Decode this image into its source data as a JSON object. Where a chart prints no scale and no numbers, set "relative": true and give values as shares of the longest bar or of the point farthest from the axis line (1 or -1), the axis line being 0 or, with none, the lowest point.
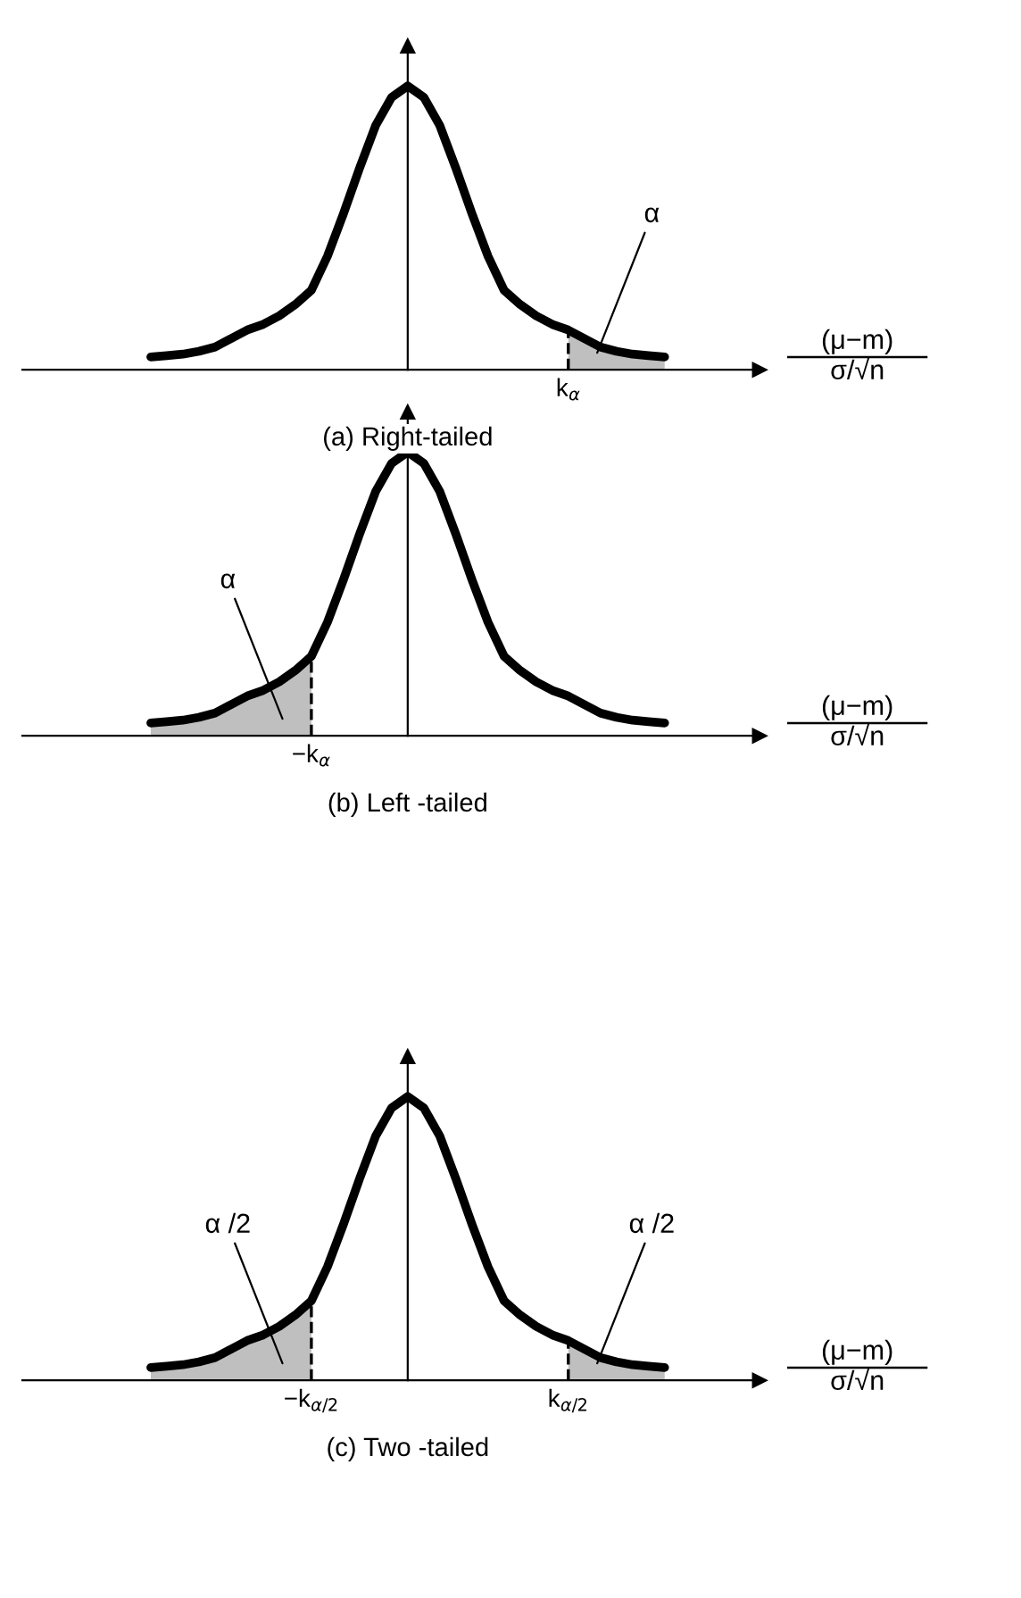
{
  "chart_data": [
    {
      "type": "line",
      "relative": true,
      "title": "(a) Right-tailed",
      "xlabel": "(μ−m)\nσ/√n",
      "categories": [
        null,
        null,
        null,
        null,
        null,
        null,
        null,
        null,
        null,
        null,
        null,
        null,
        null,
        null,
        null,
        null,
        null,
        null,
        null,
        null,
        null,
        null,
        null,
        null,
        null,
        null,
        null,
        null,
        null,
        null,
        null,
        null,
        null
      ],
      "series": [
        {
          "type": "line",
          "color": "#000000",
          "values": [
            0.045,
            0.05,
            0.055,
            0.065,
            0.08,
            0.11,
            0.14,
            0.16,
            0.19,
            0.23,
            0.28,
            0.4,
            0.55,
            0.71,
            0.86,
            0.96,
            1,
            0.96,
            0.86,
            0.71,
            0.55,
            0.4,
            0.28,
            0.23,
            0.19,
            0.16,
            0.14,
            0.11,
            0.08,
            0.065,
            0.055,
            0.05,
            0.045
          ]
        },
        {
          "type": "area",
          "color": "#bfbfbf",
          "line_style": "dashed",
          "values": [
            null,
            null,
            null,
            null,
            null,
            null,
            null,
            null,
            null,
            null,
            null,
            null,
            null,
            null,
            null,
            null,
            null,
            null,
            null,
            null,
            null,
            null,
            null,
            null,
            null,
            null,
            0.14,
            0.11,
            0.08,
            0.065,
            0.055,
            0.05,
            0.045
          ]
        }
      ],
      "annotations": [
        "k$_{α}$",
        "α"
      ]
    },
    {
      "type": "line",
      "relative": true,
      "title": "(b) Left -tailed",
      "xlabel": "(μ−m)\nσ/√n",
      "categories": [
        null,
        null,
        null,
        null,
        null,
        null,
        null,
        null,
        null,
        null,
        null,
        null,
        null,
        null,
        null,
        null,
        null,
        null,
        null,
        null,
        null,
        null,
        null,
        null,
        null,
        null,
        null,
        null,
        null,
        null,
        null,
        null,
        null
      ],
      "series": [
        {
          "type": "line",
          "color": "#000000",
          "values": [
            0.045,
            0.05,
            0.055,
            0.065,
            0.08,
            0.11,
            0.14,
            0.16,
            0.19,
            0.23,
            0.28,
            0.4,
            0.55,
            0.71,
            0.86,
            0.96,
            1,
            0.96,
            0.86,
            0.71,
            0.55,
            0.4,
            0.28,
            0.23,
            0.19,
            0.16,
            0.14,
            0.11,
            0.08,
            0.065,
            0.055,
            0.05,
            0.045
          ]
        },
        {
          "type": "area",
          "color": "#bfbfbf",
          "line_style": "dashed",
          "values": [
            0.045,
            0.05,
            0.055,
            0.065,
            0.08,
            0.11,
            0.14,
            0.16,
            0.19,
            0.23,
            0.28,
            null,
            null,
            null,
            null,
            null,
            null,
            null,
            null,
            null,
            null,
            null,
            null,
            null,
            null,
            null,
            null,
            null,
            null,
            null,
            null,
            null,
            null
          ]
        }
      ],
      "annotations": [
        "−k$_{α}$",
        "α"
      ]
    },
    {
      "type": "line",
      "relative": true,
      "title": "(c) Two -tailed",
      "xlabel": "(μ−m)\nσ/√n",
      "categories": [
        null,
        null,
        null,
        null,
        null,
        null,
        null,
        null,
        null,
        null,
        null,
        null,
        null,
        null,
        null,
        null,
        null,
        null,
        null,
        null,
        null,
        null,
        null,
        null,
        null,
        null,
        null,
        null,
        null,
        null,
        null,
        null,
        null
      ],
      "series": [
        {
          "type": "line",
          "color": "#000000",
          "values": [
            0.045,
            0.05,
            0.055,
            0.065,
            0.08,
            0.11,
            0.14,
            0.16,
            0.19,
            0.23,
            0.28,
            0.4,
            0.55,
            0.71,
            0.86,
            0.96,
            1,
            0.96,
            0.86,
            0.71,
            0.55,
            0.4,
            0.28,
            0.23,
            0.19,
            0.16,
            0.14,
            0.11,
            0.08,
            0.065,
            0.055,
            0.05,
            0.045
          ]
        },
        {
          "type": "area",
          "color": "#bfbfbf",
          "line_style": "dashed",
          "values": [
            0.045,
            0.05,
            0.055,
            0.065,
            0.08,
            0.11,
            0.14,
            0.16,
            0.19,
            0.23,
            0.28,
            null,
            null,
            null,
            null,
            null,
            null,
            null,
            null,
            null,
            null,
            null,
            null,
            null,
            null,
            null,
            null,
            null,
            null,
            null,
            null,
            null,
            null
          ]
        },
        {
          "type": "area",
          "color": "#bfbfbf",
          "line_style": "dashed",
          "values": [
            null,
            null,
            null,
            null,
            null,
            null,
            null,
            null,
            null,
            null,
            null,
            null,
            null,
            null,
            null,
            null,
            null,
            null,
            null,
            null,
            null,
            null,
            null,
            null,
            null,
            null,
            0.14,
            0.11,
            0.08,
            0.065,
            0.055,
            0.05,
            0.045
          ]
        }
      ],
      "annotations": [
        "−k$_{α/2}$",
        "α /2",
        "k$_{α/2}$",
        "α /2"
      ]
    }
  ]
}
